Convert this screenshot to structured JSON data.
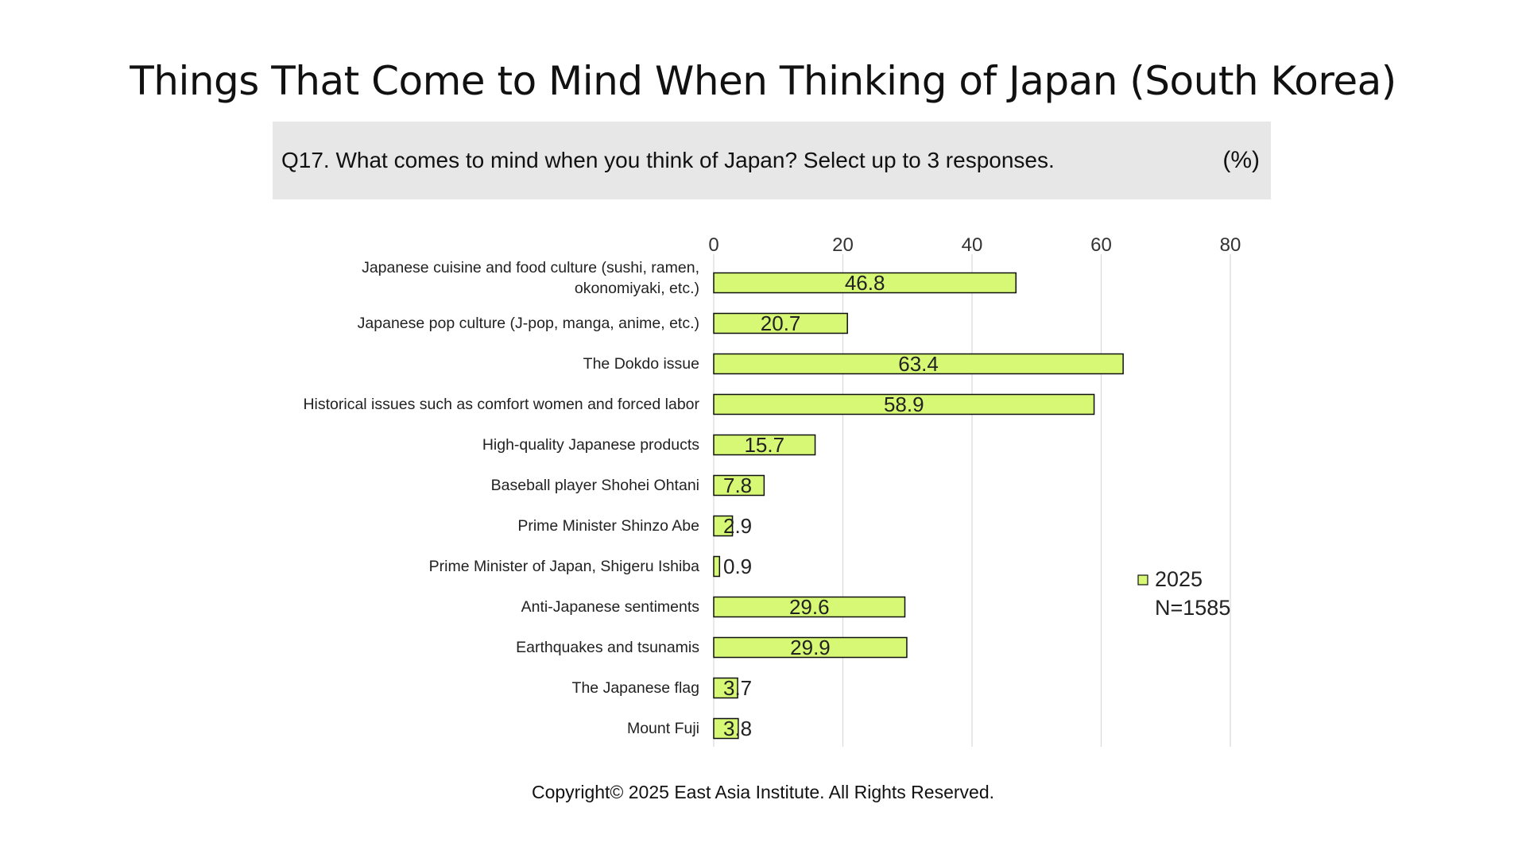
{
  "page": {
    "title": "Things That Come to Mind When Thinking of Japan (South Korea)",
    "question": "Q17. What comes to mind when you think of Japan? Select up to 3 responses.",
    "unit": "(%)",
    "copyright": "Copyright© 2025 East Asia Institute. All Rights Reserved."
  },
  "colors": {
    "bar_fill": "#d6f875",
    "bar_stroke": "#111111",
    "grid": "#d9d9d9",
    "question_bg": "#e7e7e7"
  },
  "chart_data": {
    "type": "bar",
    "orientation": "horizontal",
    "categories": [
      "Japanese cuisine and food culture (sushi, ramen, okonomiyaki, etc.)",
      "Japanese pop culture (J-pop, manga, anime, etc.)",
      "The Dokdo issue",
      "Historical issues such as comfort women and forced labor",
      "High-quality Japanese products",
      "Baseball player Shohei Ohtani",
      "Prime Minister Shinzo Abe",
      "Prime Minister of Japan, Shigeru Ishiba",
      "Anti-Japanese sentiments",
      "Earthquakes and tsunamis",
      "The Japanese flag",
      "Mount Fuji"
    ],
    "series": [
      {
        "name": "2025",
        "values": [
          46.8,
          20.7,
          63.4,
          58.9,
          15.7,
          7.8,
          2.9,
          0.9,
          29.6,
          29.9,
          3.7,
          3.8
        ],
        "labels": [
          "46.8",
          "20.7",
          "63.4",
          "58.9",
          "15.7",
          "7.8",
          "2.9",
          "0.9",
          "29.6",
          "29.9",
          "3.7",
          "3.8"
        ]
      }
    ],
    "legend_note": "N=1585",
    "xlim": [
      0,
      80
    ],
    "xticks": [
      0,
      20,
      40,
      60,
      80
    ],
    "xtick_labels": [
      "0",
      "20",
      "40",
      "60",
      "80"
    ],
    "x_axis_position": "top",
    "grid": true,
    "legend_position": "right"
  }
}
